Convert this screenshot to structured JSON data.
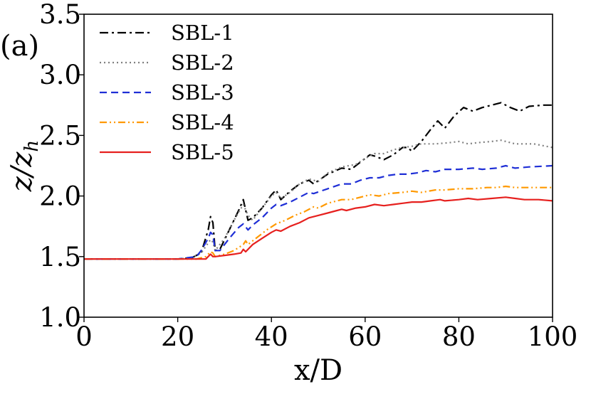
{
  "chart_data": {
    "type": "line",
    "panel_label": "(a)",
    "xlabel": "x/D",
    "ylabel": "z/z",
    "ylabel_sub": "h",
    "xlim": [
      0,
      100
    ],
    "ylim": [
      1.0,
      3.5
    ],
    "x_ticks": [
      0,
      20,
      40,
      60,
      80,
      100
    ],
    "x_tick_labels": [
      "0",
      "20",
      "40",
      "60",
      "80",
      "100"
    ],
    "y_ticks": [
      1.0,
      1.5,
      2.0,
      2.5,
      3.0,
      3.5
    ],
    "y_tick_labels": [
      "1.0",
      "1.5",
      "2.0",
      "2.5",
      "3.0",
      "3.5"
    ],
    "grid": false,
    "legend_position": "top-left",
    "series": [
      {
        "name": "SBL-1",
        "color": "#000000",
        "dash": "dashdot",
        "points": [
          [
            0,
            1.48
          ],
          [
            20,
            1.48
          ],
          [
            23,
            1.49
          ],
          [
            25,
            1.53
          ],
          [
            26.5,
            1.72
          ],
          [
            27,
            1.83
          ],
          [
            27.5,
            1.78
          ],
          [
            28,
            1.55
          ],
          [
            29,
            1.56
          ],
          [
            31,
            1.72
          ],
          [
            33,
            1.88
          ],
          [
            34,
            1.97
          ],
          [
            35,
            1.8
          ],
          [
            36,
            1.82
          ],
          [
            38,
            1.9
          ],
          [
            40,
            2.01
          ],
          [
            41,
            2.05
          ],
          [
            42,
            1.97
          ],
          [
            44,
            2.04
          ],
          [
            46,
            2.1
          ],
          [
            48,
            2.13
          ],
          [
            49,
            2.1
          ],
          [
            52,
            2.18
          ],
          [
            55,
            2.23
          ],
          [
            57,
            2.22
          ],
          [
            59,
            2.28
          ],
          [
            61,
            2.34
          ],
          [
            62,
            2.33
          ],
          [
            64,
            2.3
          ],
          [
            66,
            2.34
          ],
          [
            68,
            2.4
          ],
          [
            69,
            2.4
          ],
          [
            70,
            2.37
          ],
          [
            72,
            2.45
          ],
          [
            74,
            2.55
          ],
          [
            75.5,
            2.62
          ],
          [
            76,
            2.6
          ],
          [
            77,
            2.56
          ],
          [
            79,
            2.66
          ],
          [
            81,
            2.73
          ],
          [
            83,
            2.7
          ],
          [
            85,
            2.73
          ],
          [
            87,
            2.75
          ],
          [
            89,
            2.77
          ],
          [
            91,
            2.73
          ],
          [
            93,
            2.7
          ],
          [
            95,
            2.74
          ],
          [
            98,
            2.75
          ],
          [
            100,
            2.75
          ]
        ]
      },
      {
        "name": "SBL-2",
        "color": "#808080",
        "dash": "dotted",
        "points": [
          [
            0,
            1.48
          ],
          [
            20,
            1.48
          ],
          [
            23,
            1.49
          ],
          [
            25,
            1.53
          ],
          [
            27,
            1.64
          ],
          [
            27.5,
            1.62
          ],
          [
            28,
            1.55
          ],
          [
            30,
            1.65
          ],
          [
            32,
            1.8
          ],
          [
            34,
            1.93
          ],
          [
            35,
            1.84
          ],
          [
            36,
            1.8
          ],
          [
            38,
            1.9
          ],
          [
            40,
            2.0
          ],
          [
            41,
            2.03
          ],
          [
            42,
            1.98
          ],
          [
            44,
            2.03
          ],
          [
            46,
            2.1
          ],
          [
            48,
            2.14
          ],
          [
            50,
            2.12
          ],
          [
            52,
            2.19
          ],
          [
            55,
            2.24
          ],
          [
            58,
            2.26
          ],
          [
            60,
            2.31
          ],
          [
            62,
            2.35
          ],
          [
            64,
            2.35
          ],
          [
            66,
            2.38
          ],
          [
            68,
            2.4
          ],
          [
            70,
            2.41
          ],
          [
            72,
            2.43
          ],
          [
            75,
            2.43
          ],
          [
            78,
            2.44
          ],
          [
            80,
            2.45
          ],
          [
            82,
            2.43
          ],
          [
            84,
            2.44
          ],
          [
            87,
            2.45
          ],
          [
            89,
            2.46
          ],
          [
            92,
            2.43
          ],
          [
            96,
            2.43
          ],
          [
            100,
            2.4
          ]
        ]
      },
      {
        "name": "SBL-3",
        "color": "#1f2fd6",
        "dash": "dashed",
        "points": [
          [
            0,
            1.48
          ],
          [
            20,
            1.48
          ],
          [
            24,
            1.5
          ],
          [
            25,
            1.55
          ],
          [
            26.5,
            1.65
          ],
          [
            27,
            1.7
          ],
          [
            27.5,
            1.68
          ],
          [
            28,
            1.55
          ],
          [
            29,
            1.55
          ],
          [
            31,
            1.65
          ],
          [
            33,
            1.74
          ],
          [
            34,
            1.77
          ],
          [
            35,
            1.72
          ],
          [
            36,
            1.76
          ],
          [
            38,
            1.82
          ],
          [
            40,
            1.9
          ],
          [
            41,
            1.93
          ],
          [
            42,
            1.92
          ],
          [
            44,
            1.95
          ],
          [
            46,
            1.99
          ],
          [
            48,
            2.03
          ],
          [
            49,
            2.02
          ],
          [
            52,
            2.06
          ],
          [
            55,
            2.1
          ],
          [
            57,
            2.1
          ],
          [
            59,
            2.13
          ],
          [
            61,
            2.15
          ],
          [
            63,
            2.15
          ],
          [
            65,
            2.17
          ],
          [
            67,
            2.18
          ],
          [
            69,
            2.18
          ],
          [
            71,
            2.19
          ],
          [
            73,
            2.21
          ],
          [
            75,
            2.2
          ],
          [
            77,
            2.22
          ],
          [
            80,
            2.22
          ],
          [
            83,
            2.23
          ],
          [
            85,
            2.22
          ],
          [
            88,
            2.23
          ],
          [
            90,
            2.25
          ],
          [
            92,
            2.23
          ],
          [
            95,
            2.24
          ],
          [
            100,
            2.25
          ]
        ]
      },
      {
        "name": "SBL-4",
        "color": "#ff9900",
        "dash": "dashdotdot",
        "points": [
          [
            0,
            1.48
          ],
          [
            24,
            1.48
          ],
          [
            26,
            1.5
          ],
          [
            27,
            1.54
          ],
          [
            27.5,
            1.53
          ],
          [
            28,
            1.5
          ],
          [
            30,
            1.52
          ],
          [
            32,
            1.55
          ],
          [
            34,
            1.6
          ],
          [
            34.5,
            1.63
          ],
          [
            35,
            1.6
          ],
          [
            37,
            1.66
          ],
          [
            39,
            1.72
          ],
          [
            41,
            1.77
          ],
          [
            43,
            1.8
          ],
          [
            45,
            1.84
          ],
          [
            47,
            1.87
          ],
          [
            49,
            1.91
          ],
          [
            50,
            1.9
          ],
          [
            52,
            1.94
          ],
          [
            55,
            1.97
          ],
          [
            57,
            1.97
          ],
          [
            59,
            1.99
          ],
          [
            61,
            2.01
          ],
          [
            63,
            2.0
          ],
          [
            65,
            2.02
          ],
          [
            68,
            2.03
          ],
          [
            70,
            2.04
          ],
          [
            72,
            2.03
          ],
          [
            75,
            2.05
          ],
          [
            77,
            2.05
          ],
          [
            80,
            2.06
          ],
          [
            83,
            2.06
          ],
          [
            86,
            2.07
          ],
          [
            88,
            2.07
          ],
          [
            90,
            2.08
          ],
          [
            92,
            2.07
          ],
          [
            95,
            2.07
          ],
          [
            100,
            2.07
          ]
        ]
      },
      {
        "name": "SBL-5",
        "color": "#e6201e",
        "dash": "solid",
        "points": [
          [
            0,
            1.48
          ],
          [
            26,
            1.48
          ],
          [
            27,
            1.52
          ],
          [
            27.5,
            1.5
          ],
          [
            28,
            1.5
          ],
          [
            30,
            1.51
          ],
          [
            32,
            1.52
          ],
          [
            33.5,
            1.53
          ],
          [
            34,
            1.56
          ],
          [
            34.5,
            1.54
          ],
          [
            36,
            1.6
          ],
          [
            38,
            1.65
          ],
          [
            40,
            1.7
          ],
          [
            41,
            1.72
          ],
          [
            42,
            1.71
          ],
          [
            44,
            1.75
          ],
          [
            46,
            1.78
          ],
          [
            48,
            1.82
          ],
          [
            50,
            1.84
          ],
          [
            52,
            1.86
          ],
          [
            54,
            1.88
          ],
          [
            55,
            1.89
          ],
          [
            56,
            1.88
          ],
          [
            58,
            1.9
          ],
          [
            60,
            1.91
          ],
          [
            62,
            1.93
          ],
          [
            64,
            1.92
          ],
          [
            66,
            1.93
          ],
          [
            68,
            1.94
          ],
          [
            70,
            1.95
          ],
          [
            72,
            1.95
          ],
          [
            74,
            1.96
          ],
          [
            76,
            1.97
          ],
          [
            77,
            1.96
          ],
          [
            80,
            1.97
          ],
          [
            82,
            1.98
          ],
          [
            84,
            1.97
          ],
          [
            87,
            1.98
          ],
          [
            90,
            1.99
          ],
          [
            92,
            1.98
          ],
          [
            94,
            1.97
          ],
          [
            97,
            1.97
          ],
          [
            100,
            1.96
          ]
        ]
      }
    ]
  }
}
